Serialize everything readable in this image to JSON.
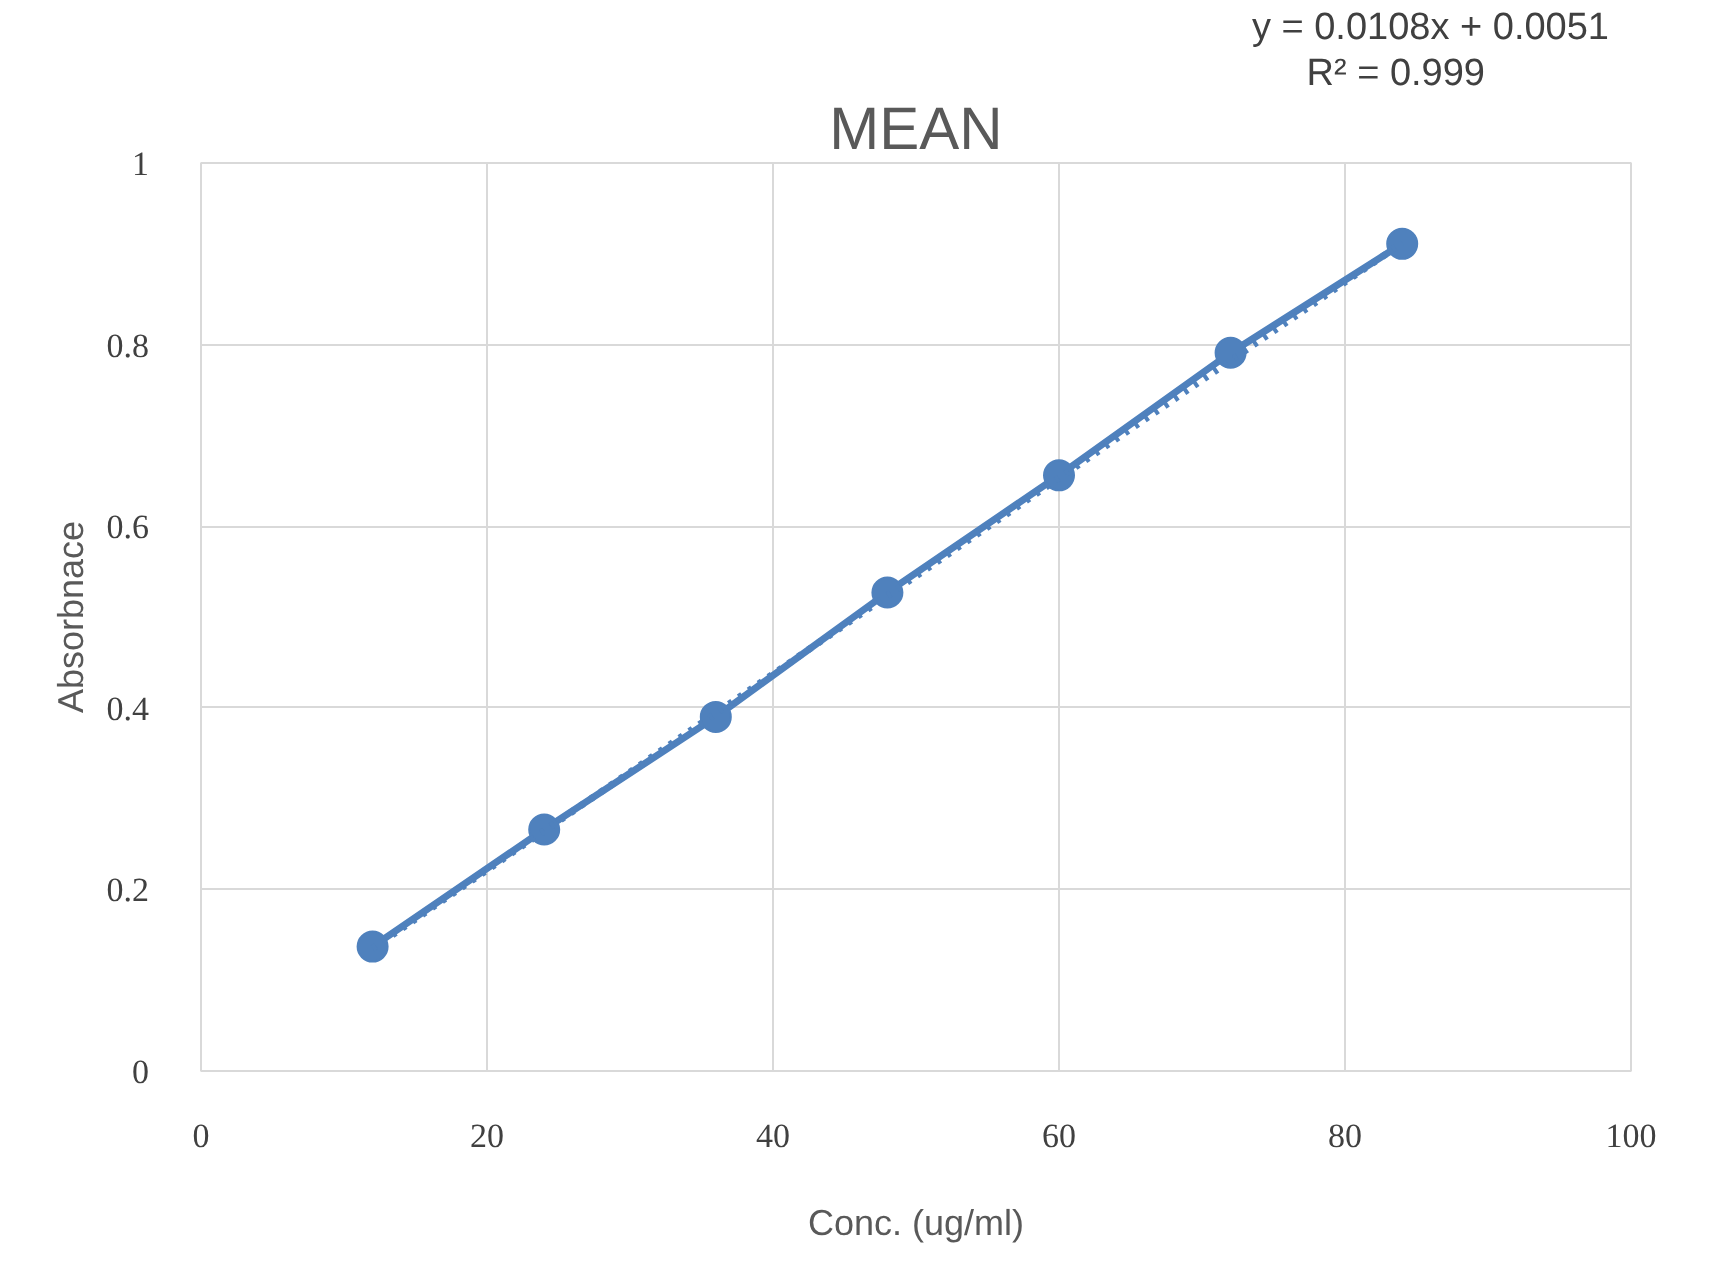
{
  "chart_data": {
    "type": "line",
    "title": "MEAN",
    "xlabel": "Conc. (ug/ml)",
    "ylabel": "Absorbnace",
    "annotations": [
      "y = 0.0108x + 0.0051",
      "R² = 0.999"
    ],
    "series": [
      {
        "color": "#4f81bd",
        "marker": "circle",
        "line_style": "solid",
        "x": [
          12,
          24,
          36,
          48,
          60,
          72,
          84
        ],
        "values": [
          0.137,
          0.266,
          0.39,
          0.527,
          0.656,
          0.791,
          0.911
        ]
      },
      {
        "type": "line",
        "color": "#4f81bd",
        "line_style": "dotted",
        "x": [
          12,
          84
        ],
        "values": [
          0.135,
          0.912
        ]
      }
    ],
    "xlim": [
      0,
      100
    ],
    "xticks": [
      0,
      20,
      40,
      60,
      80,
      100
    ],
    "ylim": [
      0,
      1
    ],
    "yticks": [
      0,
      0.2,
      0.4,
      0.6,
      0.8,
      1
    ],
    "grid": true
  }
}
